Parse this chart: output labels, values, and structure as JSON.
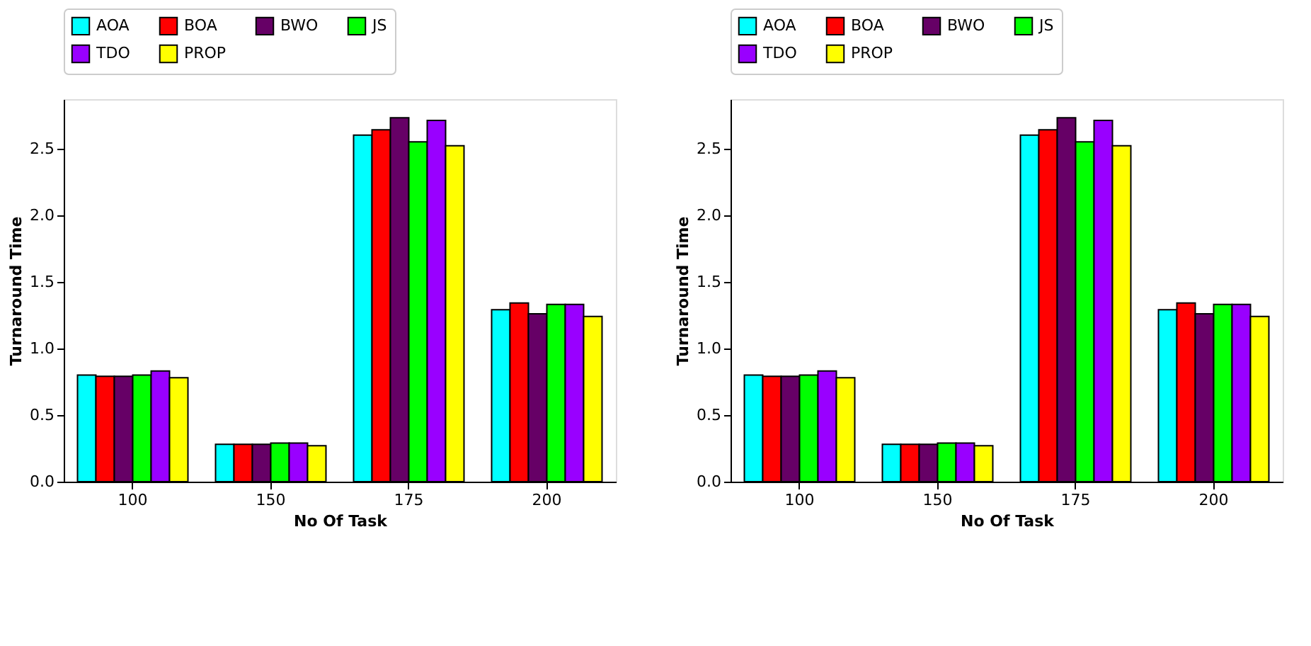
{
  "chart_data": [
    {
      "type": "bar",
      "xlabel": "No Of Task",
      "ylabel": "Turnaround Time",
      "categories": [
        "100",
        "150",
        "175",
        "200"
      ],
      "series": [
        {
          "name": "AOA",
          "color": "#00ffff",
          "values": [
            0.8,
            0.28,
            2.6,
            1.29
          ]
        },
        {
          "name": "BOA",
          "color": "#ff0000",
          "values": [
            0.79,
            0.28,
            2.64,
            1.34
          ]
        },
        {
          "name": "BWO",
          "color": "#660066",
          "values": [
            0.79,
            0.28,
            2.73,
            1.26
          ]
        },
        {
          "name": "JS",
          "color": "#00ff00",
          "values": [
            0.8,
            0.29,
            2.55,
            1.33
          ]
        },
        {
          "name": "TDO",
          "color": "#9900ff",
          "values": [
            0.83,
            0.29,
            2.71,
            1.33
          ]
        },
        {
          "name": "PROP",
          "color": "#ffff00",
          "values": [
            0.78,
            0.27,
            2.52,
            1.24
          ]
        }
      ],
      "ylim": [
        0,
        2.87
      ],
      "yticks": [
        {
          "value": 0,
          "label": "0.0"
        },
        0.5,
        {
          "value": 1,
          "label": "1.0"
        },
        1.5,
        {
          "value": 2,
          "label": "2.0"
        },
        2.5
      ],
      "grid": false,
      "legend": "top"
    },
    {
      "type": "bar",
      "xlabel": "No Of Task",
      "ylabel": "Turnaround Time",
      "categories": [
        "100",
        "150",
        "175",
        "200"
      ],
      "series": [
        {
          "name": "AOA",
          "color": "#00ffff",
          "values": [
            0.8,
            0.28,
            2.6,
            1.29
          ]
        },
        {
          "name": "BOA",
          "color": "#ff0000",
          "values": [
            0.79,
            0.28,
            2.64,
            1.34
          ]
        },
        {
          "name": "BWO",
          "color": "#660066",
          "values": [
            0.79,
            0.28,
            2.73,
            1.26
          ]
        },
        {
          "name": "JS",
          "color": "#00ff00",
          "values": [
            0.8,
            0.29,
            2.55,
            1.33
          ]
        },
        {
          "name": "TDO",
          "color": "#9900ff",
          "values": [
            0.83,
            0.29,
            2.71,
            1.33
          ]
        },
        {
          "name": "PROP",
          "color": "#ffff00",
          "values": [
            0.78,
            0.27,
            2.52,
            1.24
          ]
        }
      ],
      "ylim": [
        0,
        2.87
      ],
      "yticks": [
        {
          "value": 0,
          "label": "0.0"
        },
        0.5,
        {
          "value": 1,
          "label": "1.0"
        },
        1.5,
        {
          "value": 2,
          "label": "2.0"
        },
        2.5
      ],
      "grid": false,
      "legend": "top"
    }
  ]
}
